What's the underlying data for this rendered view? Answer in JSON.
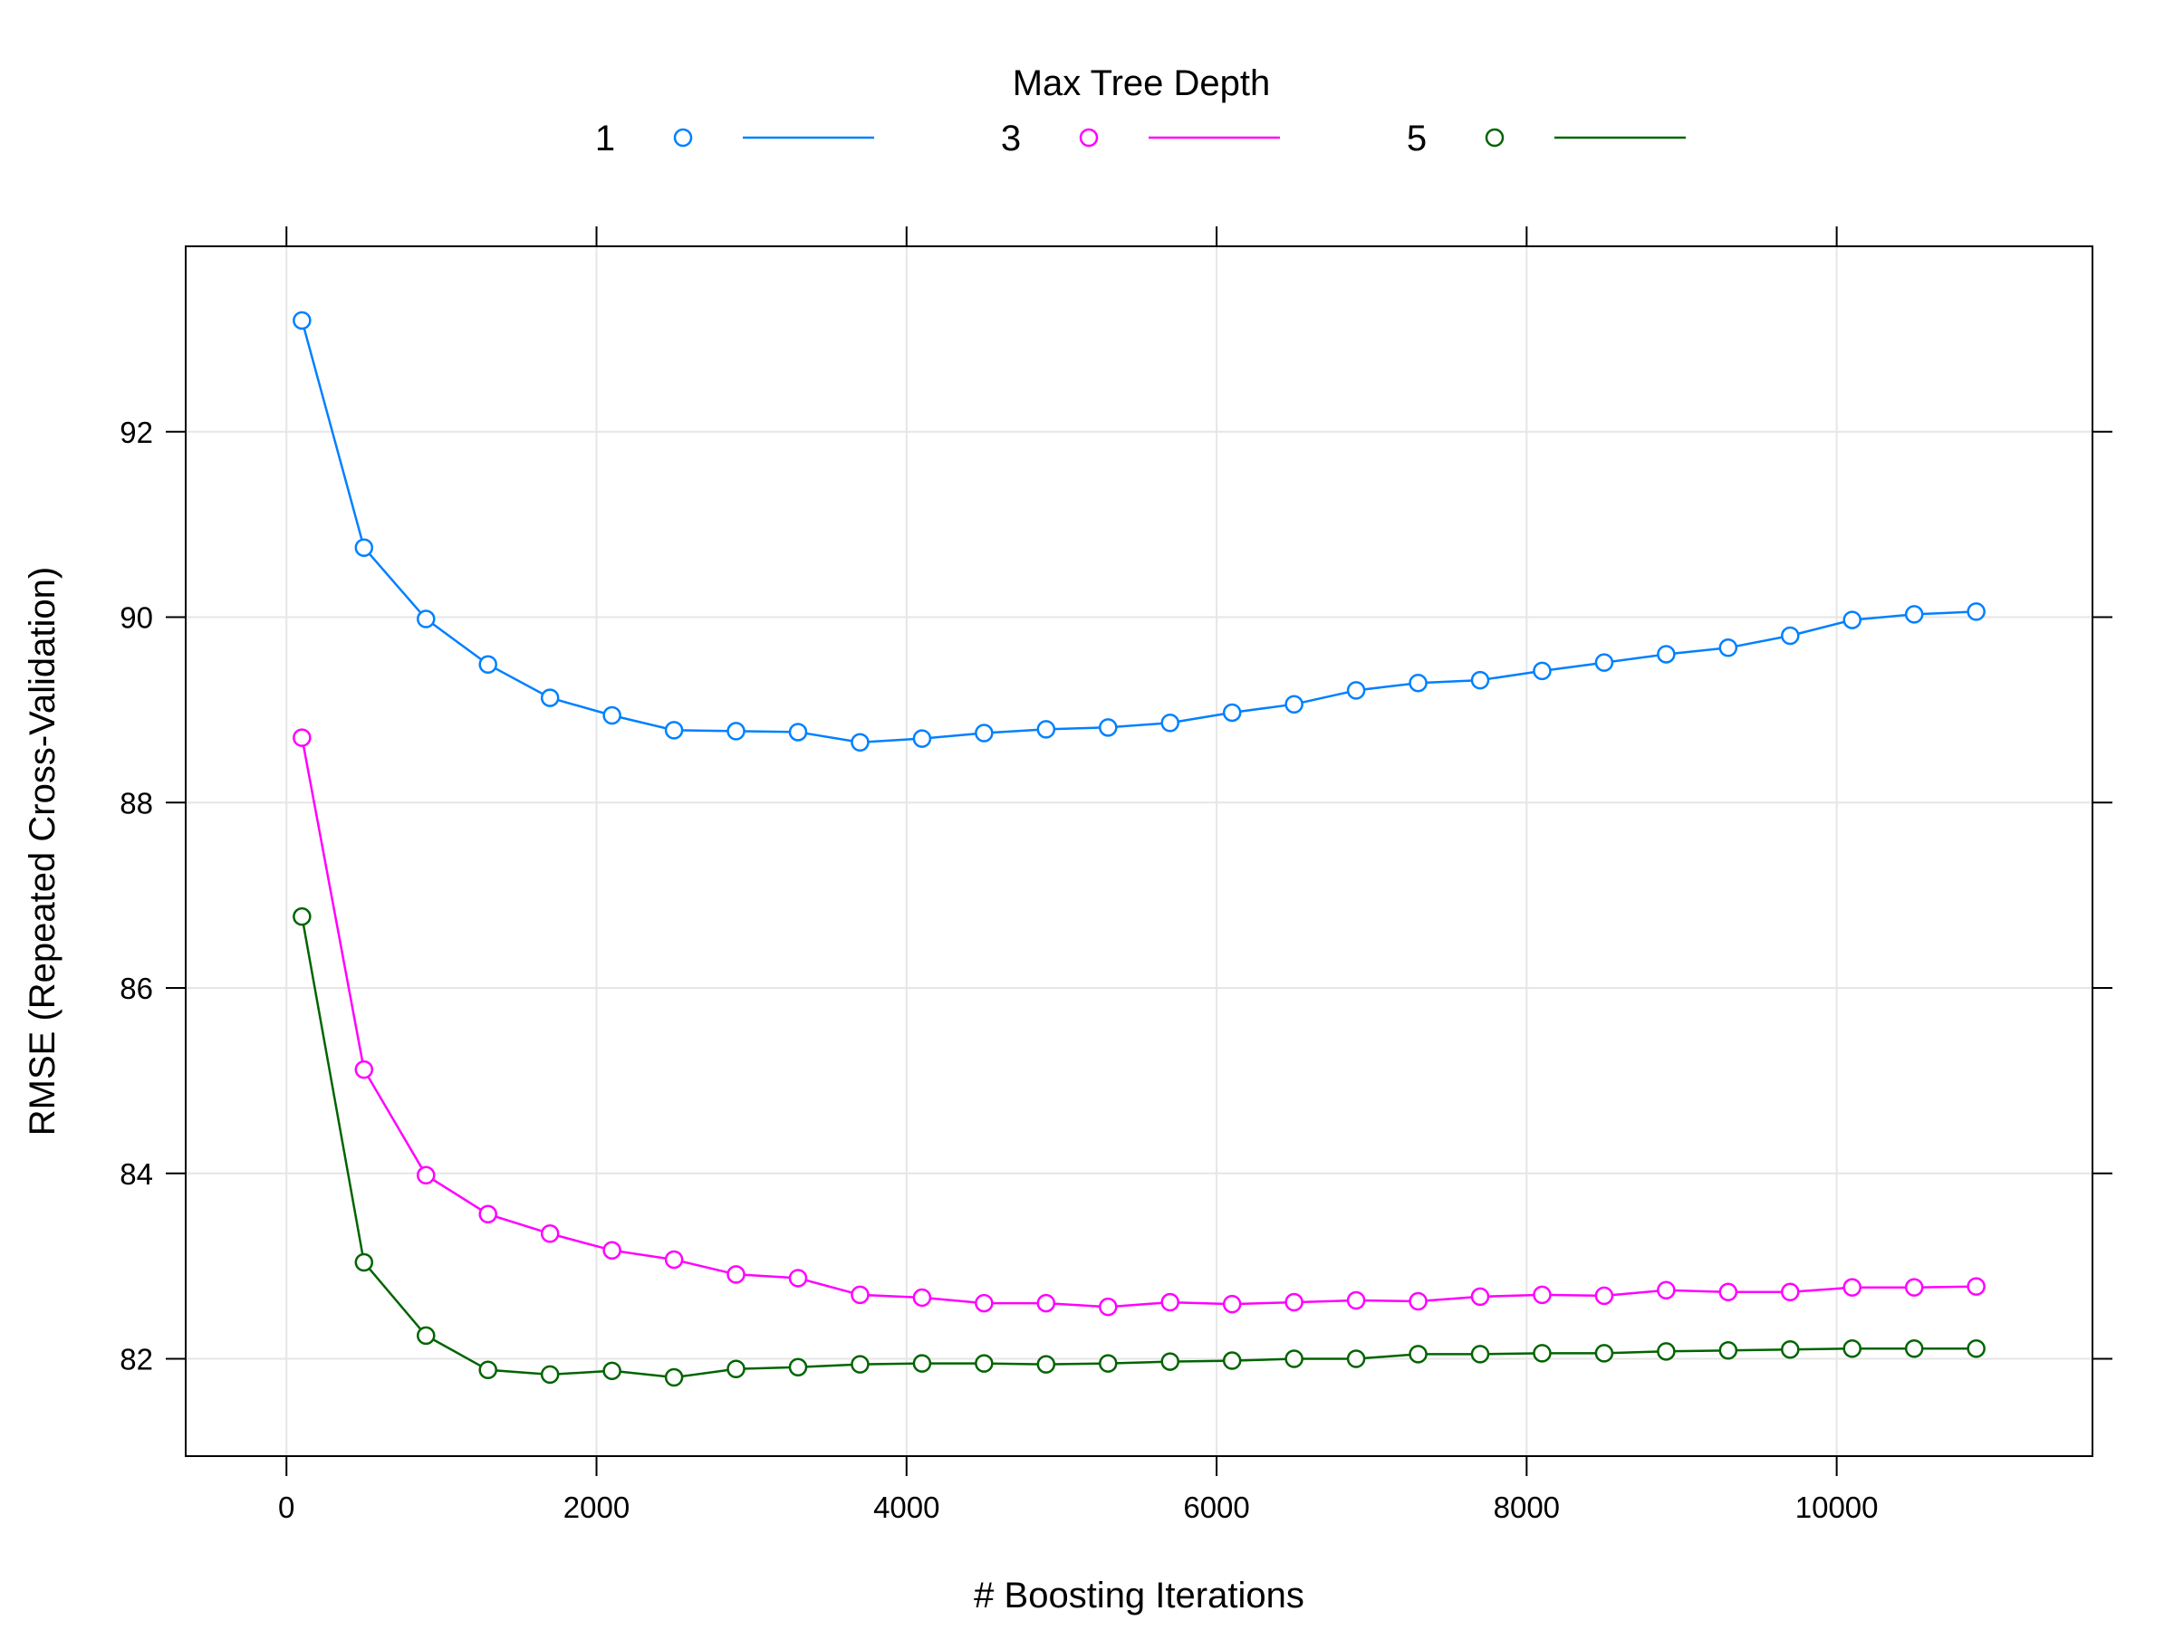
{
  "chart_data": {
    "type": "line",
    "xlabel": "# Boosting Iterations",
    "ylabel": "RMSE (Repeated Cross-Validation)",
    "legend": {
      "title": "Max Tree Depth",
      "placement": "top",
      "entries": [
        "1",
        "3",
        "5"
      ]
    },
    "xlim": [
      -650,
      11650
    ],
    "ylim": [
      80.95,
      94.0
    ],
    "x_ticks": [
      0,
      2000,
      4000,
      6000,
      8000,
      10000
    ],
    "y_ticks": [
      82,
      84,
      86,
      88,
      90,
      92
    ],
    "grid": true,
    "x": [
      100,
      500,
      900,
      1300,
      1700,
      2100,
      2500,
      2900,
      3300,
      3700,
      4100,
      4500,
      4900,
      5300,
      5700,
      6100,
      6500,
      6900,
      7300,
      7700,
      8100,
      8500,
      8900,
      9300,
      9700,
      10100,
      10500,
      10900
    ],
    "series": [
      {
        "name": "1",
        "color": "#0080ff",
        "values": [
          93.2,
          90.75,
          89.98,
          89.49,
          89.13,
          88.94,
          88.78,
          88.77,
          88.76,
          88.65,
          88.69,
          88.75,
          88.79,
          88.81,
          88.86,
          88.97,
          89.06,
          89.21,
          89.29,
          89.32,
          89.42,
          89.51,
          89.6,
          89.67,
          89.8,
          89.97,
          90.03,
          90.06
        ]
      },
      {
        "name": "3",
        "color": "#ff00ff",
        "values": [
          88.7,
          85.12,
          83.98,
          83.56,
          83.35,
          83.17,
          83.07,
          82.91,
          82.87,
          82.69,
          82.66,
          82.6,
          82.6,
          82.56,
          82.61,
          82.59,
          82.61,
          82.63,
          82.62,
          82.67,
          82.69,
          82.68,
          82.74,
          82.72,
          82.72,
          82.77,
          82.77,
          82.78
        ]
      },
      {
        "name": "5",
        "color": "#006400",
        "values": [
          86.77,
          83.04,
          82.25,
          81.88,
          81.83,
          81.87,
          81.8,
          81.89,
          81.91,
          81.94,
          81.95,
          81.95,
          81.94,
          81.95,
          81.97,
          81.98,
          82.0,
          82.0,
          82.05,
          82.05,
          82.06,
          82.06,
          82.08,
          82.09,
          82.1,
          82.11,
          82.11,
          82.11
        ]
      }
    ]
  }
}
